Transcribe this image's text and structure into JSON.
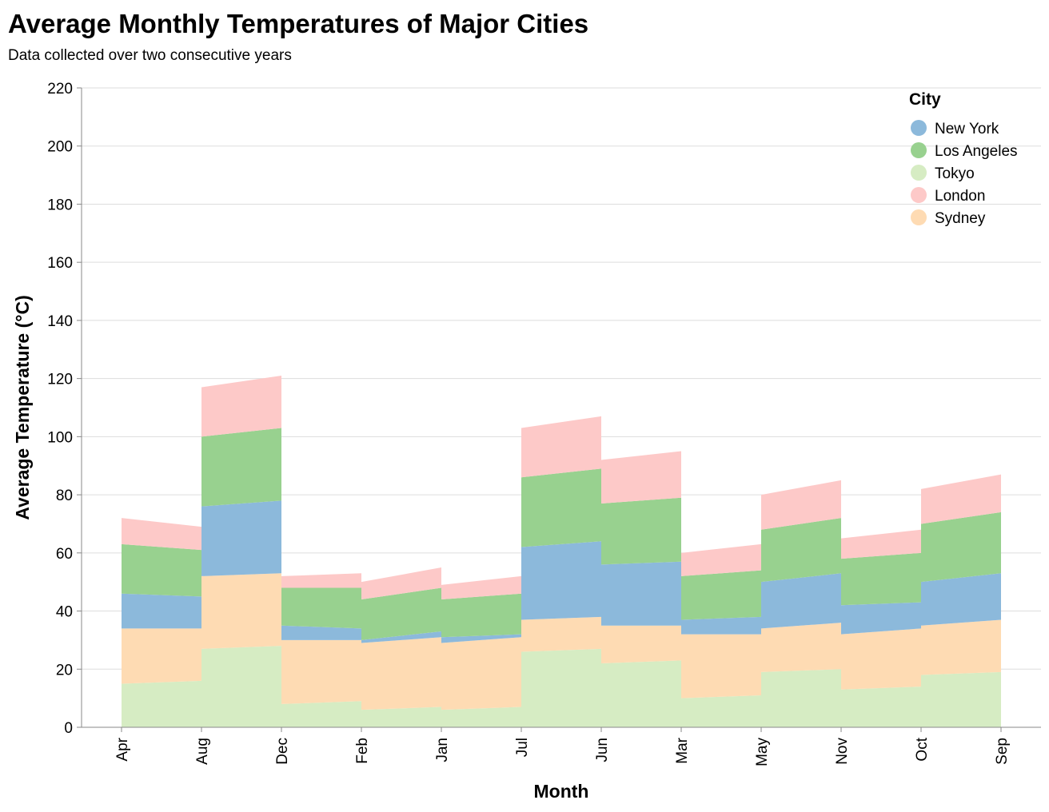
{
  "chart_data": {
    "type": "area",
    "title": "Average Monthly Temperatures of Major Cities",
    "subtitle": "Data collected over two consecutive years",
    "xlabel": "Month",
    "ylabel": "Average Temperature (°C)",
    "ylim": [
      0,
      220
    ],
    "yticks": [
      0,
      20,
      40,
      60,
      80,
      100,
      120,
      140,
      160,
      180,
      200,
      220
    ],
    "grid": true,
    "stacked": true,
    "legend": {
      "title": "City",
      "position": "top-right"
    },
    "categories": [
      "Apr",
      "Aug",
      "Dec",
      "Feb",
      "Jan",
      "Jul",
      "Jun",
      "Mar",
      "May",
      "Nov",
      "Oct",
      "Sep"
    ],
    "series": [
      {
        "name": "Tokyo",
        "color": "#d6ecc3",
        "values": [
          [
            15,
            16
          ],
          [
            27,
            28
          ],
          [
            8,
            9
          ],
          [
            6,
            7
          ],
          [
            6,
            7
          ],
          [
            26,
            27
          ],
          [
            22,
            23
          ],
          [
            10,
            11
          ],
          [
            19,
            20
          ],
          [
            13,
            14
          ],
          [
            18,
            19
          ],
          [
            23,
            0
          ]
        ]
      },
      {
        "name": "Sydney",
        "color": "#fedbb3",
        "values": [
          [
            19,
            18
          ],
          [
            25,
            25
          ],
          [
            22,
            21
          ],
          [
            23,
            24
          ],
          [
            23,
            24
          ],
          [
            11,
            11
          ],
          [
            13,
            12
          ],
          [
            22,
            21
          ],
          [
            15,
            16
          ],
          [
            19,
            20
          ],
          [
            17,
            18
          ],
          [
            16,
            16
          ]
        ]
      },
      {
        "name": "New York",
        "color": "#8cb9db",
        "values": [
          [
            12,
            11
          ],
          [
            24,
            25
          ],
          [
            5,
            4
          ],
          [
            1,
            2
          ],
          [
            2,
            1
          ],
          [
            25,
            26
          ],
          [
            21,
            22
          ],
          [
            5,
            6
          ],
          [
            16,
            17
          ],
          [
            10,
            9
          ],
          [
            15,
            16
          ],
          [
            21,
            0
          ]
        ]
      },
      {
        "name": "Los Angeles",
        "color": "#98d18f",
        "values": [
          [
            17,
            16
          ],
          [
            24,
            25
          ],
          [
            13,
            14
          ],
          [
            14,
            15
          ],
          [
            13,
            14
          ],
          [
            24,
            25
          ],
          [
            21,
            22
          ],
          [
            15,
            16
          ],
          [
            18,
            19
          ],
          [
            16,
            17
          ],
          [
            20,
            21
          ],
          [
            23,
            0
          ]
        ]
      },
      {
        "name": "London",
        "color": "#fdc9c8",
        "values": [
          [
            9,
            8
          ],
          [
            17,
            18
          ],
          [
            4,
            5
          ],
          [
            6,
            7
          ],
          [
            5,
            6
          ],
          [
            17,
            18
          ],
          [
            15,
            16
          ],
          [
            8,
            9
          ],
          [
            12,
            13
          ],
          [
            7,
            8
          ],
          [
            12,
            13
          ],
          [
            15,
            0
          ]
        ]
      }
    ],
    "legend_order": [
      "New York",
      "Los Angeles",
      "Tokyo",
      "London",
      "Sydney"
    ]
  }
}
